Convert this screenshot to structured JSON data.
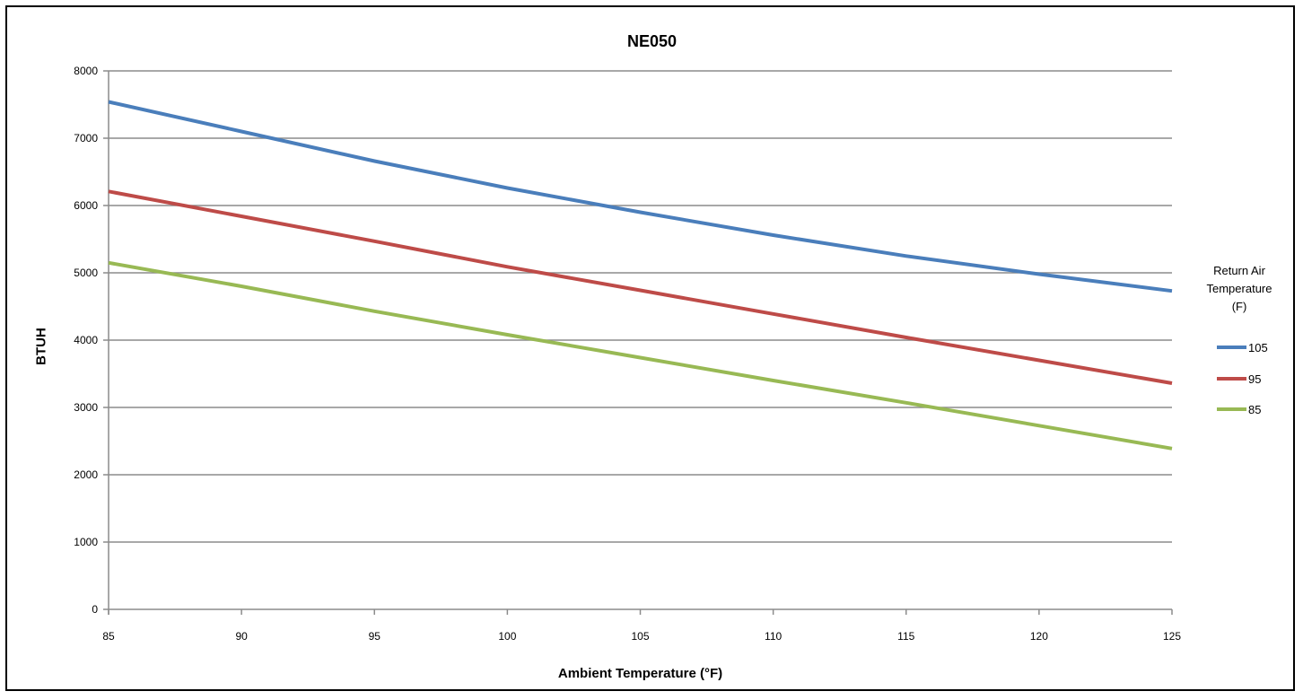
{
  "chart_data": {
    "type": "line",
    "title": "NE050",
    "xlabel": "Ambient Temperature (°F)",
    "ylabel": "BTUH",
    "xlim": [
      85,
      125
    ],
    "ylim": [
      0,
      8000
    ],
    "xticks": [
      85,
      90,
      95,
      100,
      105,
      110,
      115,
      120,
      125
    ],
    "yticks": [
      0,
      1000,
      2000,
      3000,
      4000,
      5000,
      6000,
      7000,
      8000
    ],
    "grid": "horizontal",
    "legend": {
      "title_lines": [
        "Return Air",
        "Temperature",
        "(F)"
      ],
      "position": "right"
    },
    "x": [
      85,
      90,
      95,
      100,
      105,
      110,
      115,
      120,
      125
    ],
    "series": [
      {
        "name": "105",
        "color": "#4A7EBB",
        "values": [
          7540,
          7100,
          6660,
          6260,
          5900,
          5560,
          5250,
          4980,
          4730
        ]
      },
      {
        "name": "95",
        "color": "#BE4B48",
        "values": [
          6210,
          5840,
          5470,
          5090,
          4740,
          4390,
          4040,
          3700,
          3360
        ]
      },
      {
        "name": "85",
        "color": "#98B954",
        "values": [
          5150,
          4800,
          4430,
          4080,
          3740,
          3400,
          3070,
          2730,
          2390
        ]
      }
    ]
  }
}
